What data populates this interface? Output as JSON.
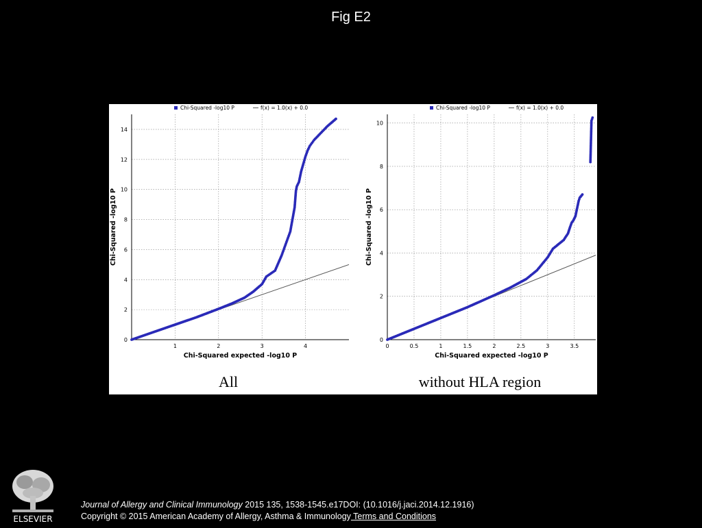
{
  "slide": {
    "title": "Fig E2"
  },
  "captions": {
    "left": "All",
    "right": "without HLA region"
  },
  "footer": {
    "journal": "Journal of Allergy and Clinical Immunology",
    "citation_rest": " 2015 135, 1538-1545.e17DOI: (10.1016/j.jaci.2014.12.1916)",
    "copyright": "Copyright © 2015 American Academy of Allergy, Asthma & Immunology",
    "terms_link": " Terms and Conditions",
    "publisher_logo_text": "ELSEVIER"
  },
  "colors": {
    "points": "#2a2ab8",
    "fit_line": "#555555",
    "grid": "#888888",
    "background": "#000000"
  },
  "chart_data": [
    {
      "type": "scatter",
      "panel": "All",
      "xlabel": "Chi-Squared  expected -log10 P",
      "ylabel": "Chi-Squared  -log10 P",
      "legend": {
        "placement": "top",
        "entries": [
          "Chi-Squared -log10 P",
          "f(x) = 1.0(x) + 0.0"
        ]
      },
      "xlim": [
        0,
        5.0
      ],
      "ylim": [
        0,
        15.0
      ],
      "xticks": [
        1,
        2,
        3,
        4
      ],
      "yticks": [
        0,
        2,
        4,
        6,
        8,
        10,
        12,
        14
      ],
      "grid": true,
      "series": [
        {
          "name": "Chi-Squared -log10 P",
          "x": [
            0.0,
            0.5,
            1.0,
            1.5,
            2.0,
            2.3,
            2.6,
            2.8,
            3.0,
            3.1,
            3.3,
            3.45,
            3.55,
            3.65,
            3.7,
            3.75,
            3.78,
            3.8,
            3.85,
            3.9,
            3.95,
            4.0,
            4.05,
            4.1,
            4.15,
            4.2,
            4.3,
            4.4,
            4.5,
            4.6,
            4.7
          ],
          "y": [
            0.0,
            0.5,
            1.0,
            1.5,
            2.05,
            2.4,
            2.8,
            3.2,
            3.7,
            4.2,
            4.6,
            5.6,
            6.4,
            7.2,
            8.0,
            8.8,
            9.9,
            10.2,
            10.5,
            11.2,
            11.7,
            12.2,
            12.6,
            12.9,
            13.1,
            13.3,
            13.6,
            13.9,
            14.2,
            14.45,
            14.7
          ]
        },
        {
          "name": "f(x) = 1.0(x) + 0.0",
          "x": [
            0,
            5.0
          ],
          "y": [
            0,
            5.0
          ]
        }
      ]
    },
    {
      "type": "scatter",
      "panel": "without HLA region",
      "xlabel": "Chi-Squared  expected -log10 P",
      "ylabel": "Chi-Squared  -log10 P",
      "legend": {
        "placement": "top",
        "entries": [
          "Chi-Squared -log10 P",
          "f(x) = 1.0(x) + 0.0"
        ]
      },
      "xlim": [
        0,
        3.9
      ],
      "ylim": [
        0,
        10.4
      ],
      "xticks": [
        0,
        0.5,
        1,
        1.5,
        2,
        2.5,
        3,
        3.5
      ],
      "yticks": [
        0,
        2,
        4,
        6,
        8,
        10
      ],
      "grid": true,
      "series": [
        {
          "name": "Chi-Squared -log10 P",
          "x": [
            0.0,
            0.5,
            1.0,
            1.5,
            2.0,
            2.3,
            2.6,
            2.8,
            3.0,
            3.1,
            3.2,
            3.3,
            3.38,
            3.42,
            3.45,
            3.48,
            3.5,
            3.52,
            3.58,
            3.6,
            3.65,
            3.8,
            3.82,
            3.84
          ],
          "y": [
            0.0,
            0.5,
            1.0,
            1.5,
            2.05,
            2.4,
            2.8,
            3.2,
            3.8,
            4.2,
            4.4,
            4.6,
            4.9,
            5.2,
            5.4,
            5.5,
            5.6,
            5.7,
            6.4,
            6.55,
            6.7,
            8.2,
            10.1,
            10.25
          ]
        },
        {
          "name": "f(x) = 1.0(x) + 0.0",
          "x": [
            0,
            3.9
          ],
          "y": [
            0,
            3.9
          ]
        }
      ]
    }
  ]
}
